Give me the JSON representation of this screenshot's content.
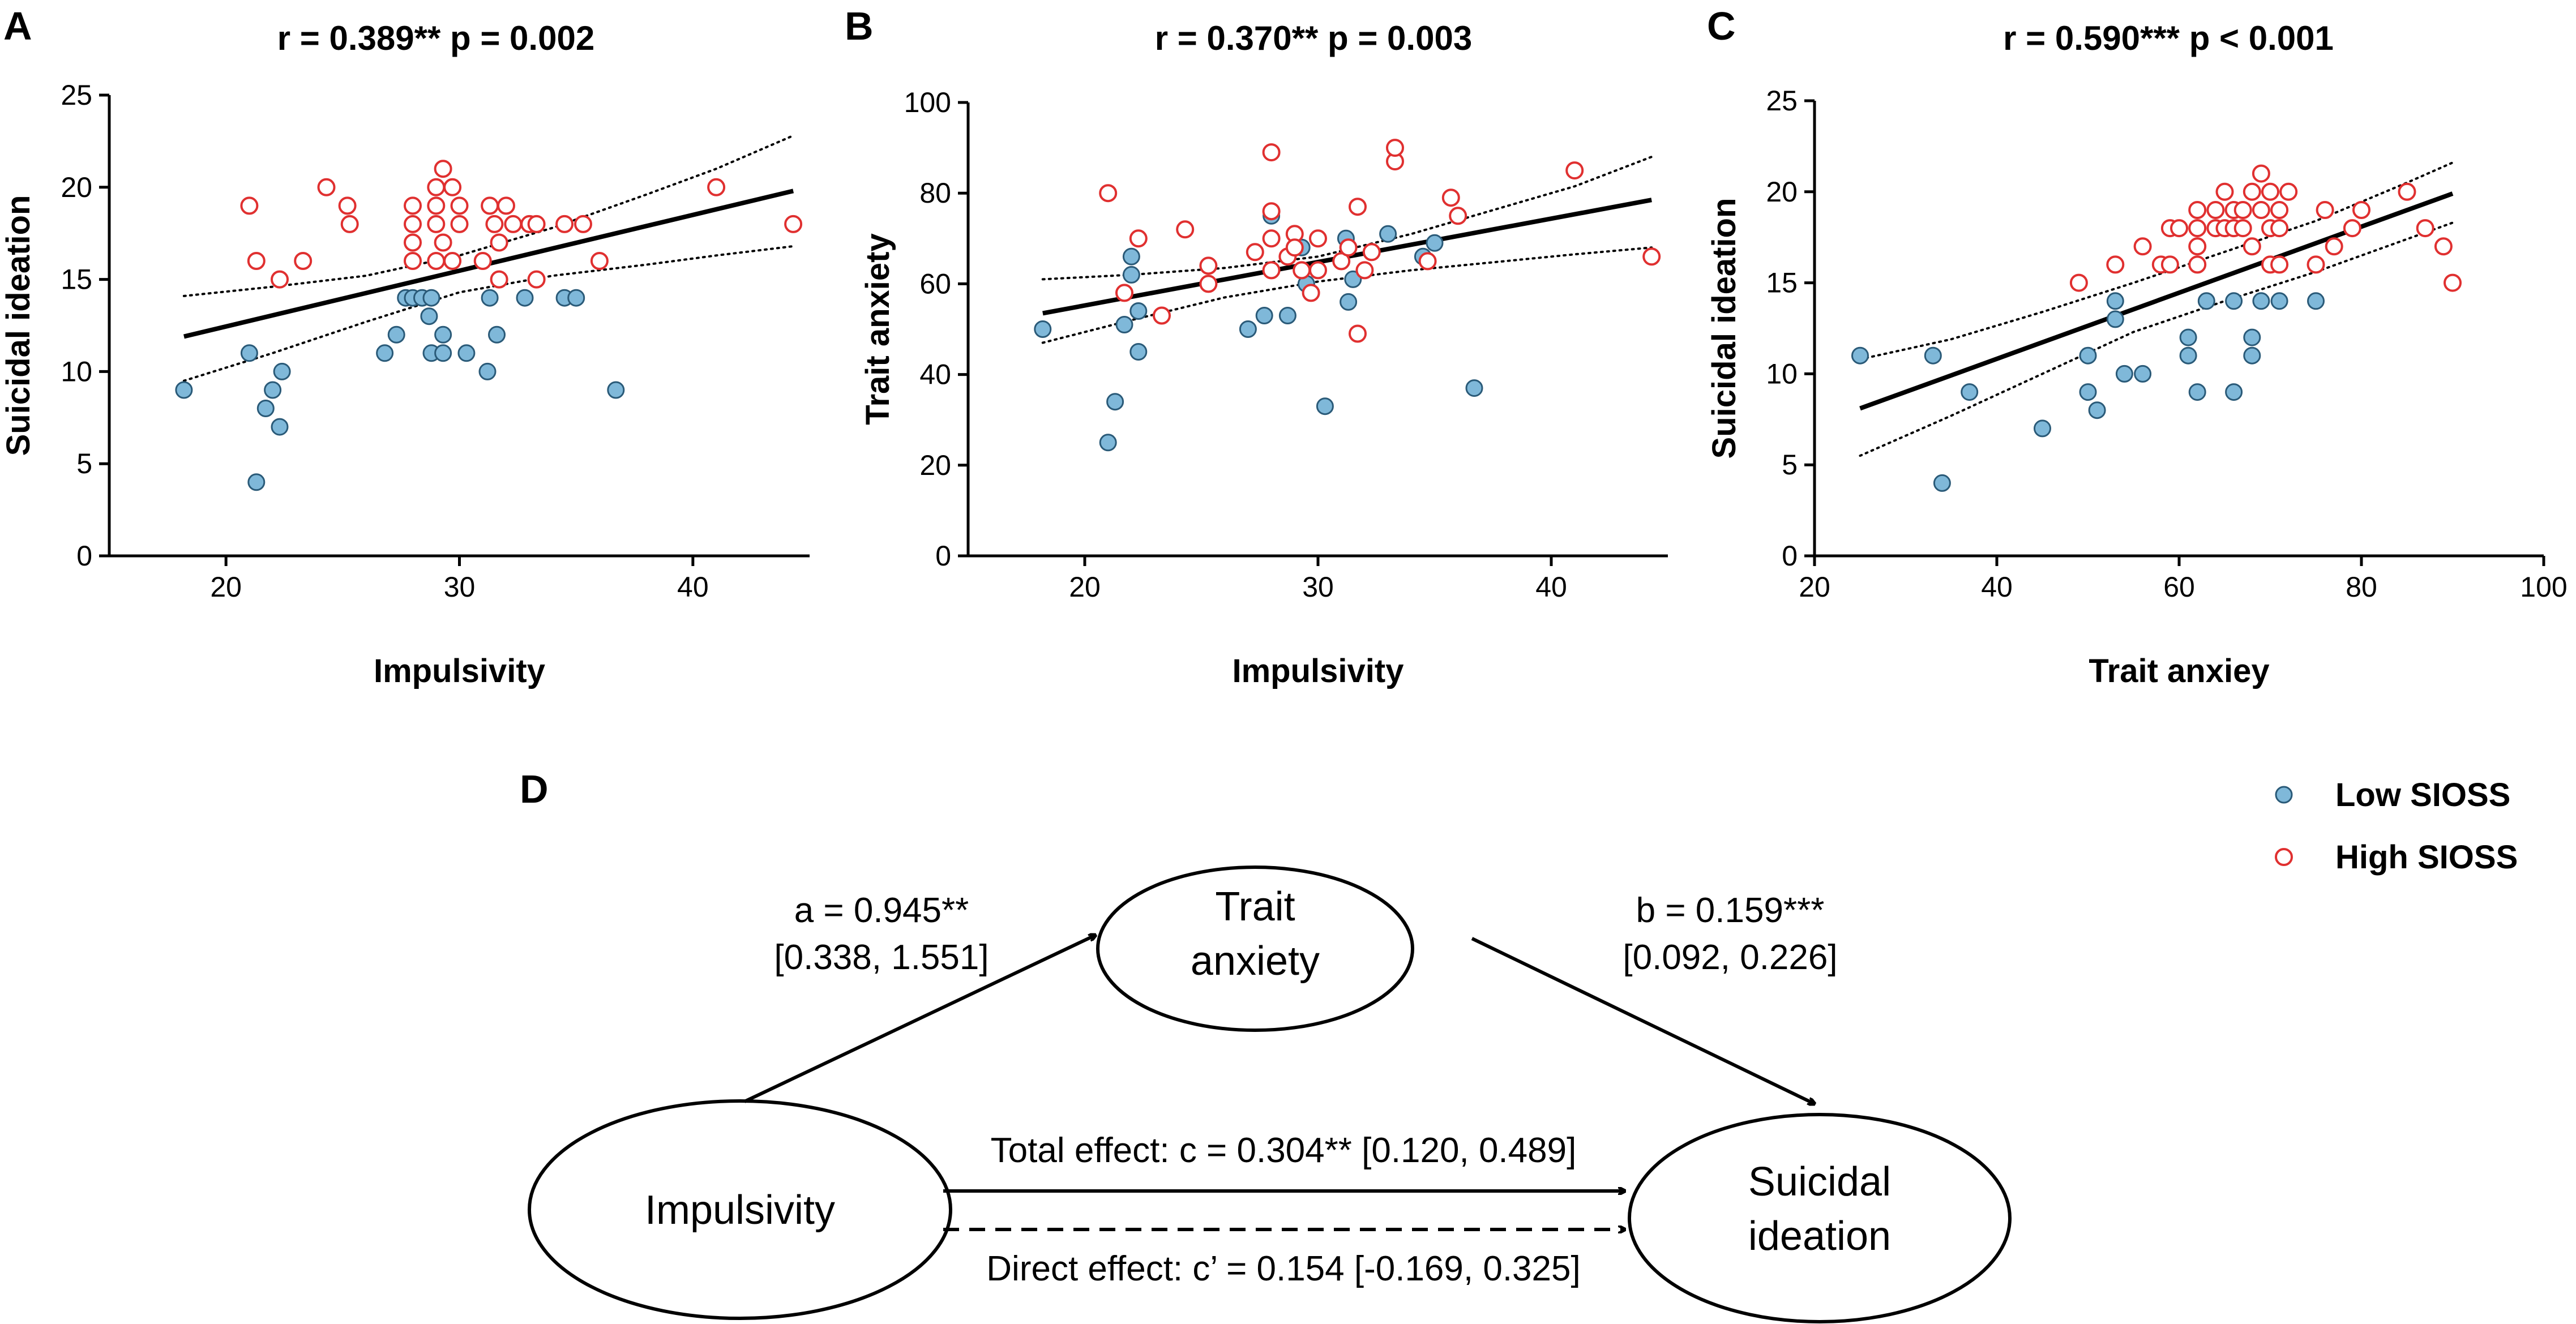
{
  "chart_data": [
    {
      "type": "scatter",
      "panel": "A",
      "title": "r = 0.389**     p = 0.002",
      "xlabel": "Impulsivity",
      "ylabel": "Suicidal ideation",
      "xlim": [
        15,
        45
      ],
      "ylim": [
        0,
        25
      ],
      "xticks": [
        20,
        30,
        40
      ],
      "yticks": [
        0,
        5,
        10,
        15,
        20,
        25
      ],
      "fit": {
        "x": [
          18.2,
          44.3
        ],
        "y": [
          11.9,
          19.8
        ]
      },
      "ci_upper": {
        "x": [
          18.2,
          22,
          26,
          30,
          34,
          38,
          41,
          44.3
        ],
        "y": [
          14.1,
          14.6,
          15.2,
          16.3,
          17.8,
          19.6,
          21.0,
          22.8
        ]
      },
      "ci_lower": {
        "x": [
          18.2,
          22,
          26,
          30,
          34,
          38,
          41,
          44.3
        ],
        "y": [
          9.5,
          11.0,
          12.7,
          14.3,
          15.2,
          15.8,
          16.3,
          16.8
        ]
      },
      "series": [
        {
          "name": "Low SIOSS",
          "color": "#7fb8d9",
          "points": [
            [
              18.2,
              9
            ],
            [
              21,
              11
            ],
            [
              21.3,
              4
            ],
            [
              21.7,
              8
            ],
            [
              22,
              9
            ],
            [
              22.3,
              7
            ],
            [
              22.4,
              10
            ],
            [
              26.8,
              11
            ],
            [
              27.3,
              12
            ],
            [
              27.7,
              14
            ],
            [
              28,
              14
            ],
            [
              28.4,
              14
            ],
            [
              28.7,
              13
            ],
            [
              28.8,
              14
            ],
            [
              28.8,
              11
            ],
            [
              29.3,
              12
            ],
            [
              29.3,
              11
            ],
            [
              30.3,
              11
            ],
            [
              31.2,
              10
            ],
            [
              31.3,
              14
            ],
            [
              31.6,
              12
            ],
            [
              32.8,
              14
            ],
            [
              34.5,
              14
            ],
            [
              35,
              14
            ],
            [
              36.7,
              9
            ]
          ]
        },
        {
          "name": "High SIOSS",
          "color": "#e03030",
          "points": [
            [
              21,
              19
            ],
            [
              21.3,
              16
            ],
            [
              22.3,
              15
            ],
            [
              23.3,
              16
            ],
            [
              24.3,
              20
            ],
            [
              25.2,
              19
            ],
            [
              25.3,
              18
            ],
            [
              28,
              19
            ],
            [
              28,
              18
            ],
            [
              28,
              17
            ],
            [
              28,
              16
            ],
            [
              29,
              19
            ],
            [
              29,
              20
            ],
            [
              29,
              18
            ],
            [
              29,
              16
            ],
            [
              29.3,
              21
            ],
            [
              29.3,
              17
            ],
            [
              29.7,
              20
            ],
            [
              29.7,
              16
            ],
            [
              30,
              19
            ],
            [
              30,
              18
            ],
            [
              31,
              16
            ],
            [
              31.3,
              19
            ],
            [
              31.5,
              18
            ],
            [
              31.7,
              15
            ],
            [
              31.7,
              17
            ],
            [
              32,
              19
            ],
            [
              32.3,
              18
            ],
            [
              33,
              18
            ],
            [
              33.3,
              18
            ],
            [
              33.3,
              15
            ],
            [
              34.5,
              18
            ],
            [
              35.3,
              18
            ],
            [
              36,
              16
            ],
            [
              41,
              20
            ],
            [
              44.3,
              18
            ]
          ]
        }
      ],
      "stat_text": "r = 0.389**     p = 0.002"
    },
    {
      "type": "scatter",
      "panel": "B",
      "title": "r = 0.370**     p = 0.003",
      "xlabel": "Impulsivity",
      "ylabel": "Trait anxiety",
      "xlim": [
        15,
        45
      ],
      "ylim": [
        0,
        100
      ],
      "xticks": [
        20,
        30,
        40
      ],
      "yticks": [
        0,
        20,
        40,
        60,
        80,
        100
      ],
      "fit": {
        "x": [
          18.2,
          44.3
        ],
        "y": [
          53.5,
          78.5
        ]
      },
      "ci_upper": {
        "x": [
          18.2,
          22,
          26,
          30,
          34,
          38,
          41,
          44.3
        ],
        "y": [
          61,
          62,
          63.5,
          66,
          71,
          77,
          81.5,
          88
        ]
      },
      "ci_lower": {
        "x": [
          18.2,
          22,
          26,
          30,
          34,
          38,
          41,
          44.3
        ],
        "y": [
          47,
          52,
          57,
          60.5,
          63,
          65,
          66.5,
          68
        ]
      },
      "series": [
        {
          "name": "Low SIOSS",
          "color": "#7fb8d9",
          "points": [
            [
              18.2,
              50
            ],
            [
              21,
              25
            ],
            [
              21.3,
              34
            ],
            [
              21.7,
              51
            ],
            [
              22,
              62
            ],
            [
              22,
              66
            ],
            [
              22.3,
              45
            ],
            [
              22.3,
              54
            ],
            [
              27,
              50
            ],
            [
              27.7,
              53
            ],
            [
              28,
              75
            ],
            [
              28.7,
              53
            ],
            [
              29.3,
              68
            ],
            [
              29.5,
              60
            ],
            [
              30.3,
              33
            ],
            [
              31.2,
              70
            ],
            [
              31.3,
              56
            ],
            [
              31.5,
              61
            ],
            [
              33,
              71
            ],
            [
              34.5,
              66
            ],
            [
              35,
              69
            ],
            [
              36.7,
              37
            ]
          ]
        },
        {
          "name": "High SIOSS",
          "color": "#e03030",
          "points": [
            [
              21,
              80
            ],
            [
              21.7,
              58
            ],
            [
              22.3,
              70
            ],
            [
              23.3,
              53
            ],
            [
              24.3,
              72
            ],
            [
              25.3,
              64
            ],
            [
              25.3,
              60
            ],
            [
              27.3,
              67
            ],
            [
              28,
              89
            ],
            [
              28,
              76
            ],
            [
              28,
              70
            ],
            [
              28,
              63
            ],
            [
              28.7,
              66
            ],
            [
              29,
              71
            ],
            [
              29,
              68
            ],
            [
              29.3,
              63
            ],
            [
              29.7,
              58
            ],
            [
              30,
              70
            ],
            [
              30,
              63
            ],
            [
              31,
              65
            ],
            [
              31.3,
              68
            ],
            [
              31.7,
              49
            ],
            [
              31.7,
              77
            ],
            [
              32,
              63
            ],
            [
              32.3,
              67
            ],
            [
              33.3,
              87
            ],
            [
              33.3,
              90
            ],
            [
              34.7,
              65
            ],
            [
              35.7,
              79
            ],
            [
              36,
              75
            ],
            [
              41,
              85
            ],
            [
              44.3,
              66
            ]
          ]
        }
      ],
      "stat_text": "r = 0.370**     p = 0.003"
    },
    {
      "type": "scatter",
      "panel": "C",
      "title": "r = 0.590***    p < 0.001",
      "xlabel": "Trait anxiey",
      "ylabel": "Suicidal ideation",
      "xlim": [
        20,
        100
      ],
      "ylim": [
        0,
        25
      ],
      "xticks": [
        20,
        40,
        60,
        80,
        100
      ],
      "yticks": [
        0,
        5,
        10,
        15,
        20,
        25
      ],
      "fit": {
        "x": [
          25,
          90
        ],
        "y": [
          8.1,
          19.9
        ]
      },
      "ci_upper": {
        "x": [
          25,
          35,
          45,
          55,
          65,
          75,
          85,
          90
        ],
        "y": [
          10.8,
          11.9,
          13.4,
          15.0,
          16.7,
          18.4,
          20.5,
          21.6
        ]
      },
      "ci_lower": {
        "x": [
          25,
          35,
          45,
          55,
          65,
          75,
          85,
          90
        ],
        "y": [
          5.5,
          7.7,
          10.0,
          12.3,
          14.0,
          15.6,
          17.4,
          18.3
        ]
      },
      "series": [
        {
          "name": "Low SIOSS",
          "color": "#7fb8d9",
          "points": [
            [
              25,
              11
            ],
            [
              33,
              11
            ],
            [
              34,
              4
            ],
            [
              37,
              9
            ],
            [
              45,
              7
            ],
            [
              50,
              11
            ],
            [
              50,
              9
            ],
            [
              51,
              8
            ],
            [
              53,
              14
            ],
            [
              53,
              13
            ],
            [
              54,
              10
            ],
            [
              56,
              10
            ],
            [
              61,
              12
            ],
            [
              61,
              11
            ],
            [
              62,
              9
            ],
            [
              63,
              14
            ],
            [
              66,
              14
            ],
            [
              66,
              9
            ],
            [
              68,
              12
            ],
            [
              68,
              11
            ],
            [
              69,
              14
            ],
            [
              71,
              14
            ],
            [
              75,
              14
            ]
          ]
        },
        {
          "name": "High SIOSS",
          "color": "#e03030",
          "points": [
            [
              49,
              15
            ],
            [
              53,
              16
            ],
            [
              56,
              17
            ],
            [
              58,
              16
            ],
            [
              59,
              18
            ],
            [
              59,
              16
            ],
            [
              60,
              18
            ],
            [
              62,
              19
            ],
            [
              62,
              18
            ],
            [
              62,
              17
            ],
            [
              62,
              16
            ],
            [
              64,
              19
            ],
            [
              64,
              18
            ],
            [
              65,
              20
            ],
            [
              65,
              18
            ],
            [
              66,
              19
            ],
            [
              66,
              18
            ],
            [
              67,
              19
            ],
            [
              67,
              18
            ],
            [
              68,
              20
            ],
            [
              68,
              17
            ],
            [
              69,
              21
            ],
            [
              69,
              19
            ],
            [
              70,
              20
            ],
            [
              70,
              18
            ],
            [
              70,
              16
            ],
            [
              71,
              19
            ],
            [
              71,
              18
            ],
            [
              71,
              16
            ],
            [
              72,
              20
            ],
            [
              75,
              16
            ],
            [
              76,
              19
            ],
            [
              77,
              17
            ],
            [
              79,
              18
            ],
            [
              80,
              19
            ],
            [
              85,
              20
            ],
            [
              87,
              18
            ],
            [
              89,
              17
            ],
            [
              90,
              15
            ]
          ]
        }
      ],
      "stat_text": "r = 0.590***    p < 0.001"
    }
  ],
  "panels": {
    "a": "A",
    "b": "B",
    "c": "C",
    "d": "D"
  },
  "legend": {
    "items": [
      {
        "label": "Low SIOSS",
        "color": "#7fb8d9"
      },
      {
        "label": "High SIOSS",
        "color": "#e03030"
      }
    ]
  },
  "mediation": {
    "nodes": {
      "x": "Impulsivity",
      "m_line1": "Trait",
      "m_line2": "anxiety",
      "y_line1": "Suicidal",
      "y_line2": "ideation"
    },
    "path_a_line1": "a = 0.945**",
    "path_a_line2": "[0.338, 1.551]",
    "path_b_line1": "b = 0.159***",
    "path_b_line2": "[0.092, 0.226]",
    "total_effect": "Total effect: c = 0.304** [0.120, 0.489]",
    "direct_effect": "Direct effect: c’ = 0.154 [-0.169, 0.325]"
  }
}
